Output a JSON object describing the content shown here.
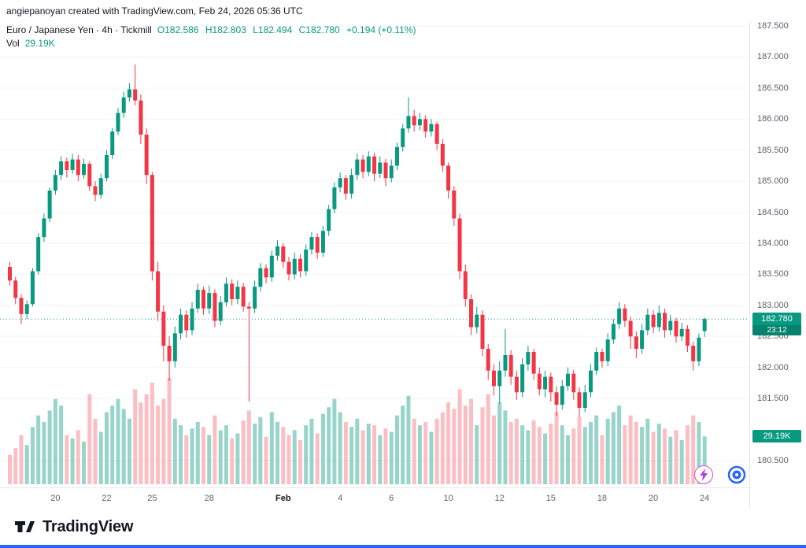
{
  "attribution": "angiepanoyan created with TradingView.com, Feb 24, 2026 05:36 UTC",
  "legend": {
    "symbol_text": "Euro / Japanese Yen · 4h · Tickmill",
    "ohlc_o": "O182.586",
    "ohlc_h": "H182.803",
    "ohlc_l": "L182.494",
    "ohlc_c": "C182.780",
    "change": "+0.194 (+0.11%)",
    "vol_label": "Vol",
    "vol_value": "29.19K"
  },
  "price_badge": {
    "price": "182.780",
    "countdown": "23:12"
  },
  "volume_badge": "29.19K",
  "price_scale": {
    "labels": [
      "187.500",
      "187.000",
      "186.500",
      "186.000",
      "185.500",
      "185.000",
      "184.500",
      "184.000",
      "183.500",
      "183.000",
      "182.500",
      "182.000",
      "181.500",
      "180.500"
    ]
  },
  "footer": {
    "brand": "TradingView"
  },
  "colors": {
    "up": "#089981",
    "down": "#F23645",
    "vol_up": "rgba(8,153,129,0.42)",
    "vol_down": "rgba(242,54,69,0.32)",
    "accent": "#2962FF",
    "grid": "#f0f3fa"
  },
  "chart_data": {
    "type": "candlestick",
    "title": "Euro / Japanese Yen",
    "interval": "4h",
    "provider": "Tickmill",
    "ylim": [
      180.5,
      187.5
    ],
    "current_price": 182.78,
    "current_volume_k": 29.19,
    "last_ohlc": {
      "open": 182.586,
      "high": 182.803,
      "low": 182.494,
      "close": 182.78
    },
    "time_axis": [
      {
        "i": 8,
        "label": "20"
      },
      {
        "i": 17,
        "label": "22"
      },
      {
        "i": 25,
        "label": "25"
      },
      {
        "i": 35,
        "label": "28"
      },
      {
        "i": 48,
        "label": "Feb",
        "major": true
      },
      {
        "i": 58,
        "label": "4"
      },
      {
        "i": 67,
        "label": "6"
      },
      {
        "i": 77,
        "label": "10"
      },
      {
        "i": 86,
        "label": "12"
      },
      {
        "i": 95,
        "label": "15"
      },
      {
        "i": 104,
        "label": "18"
      },
      {
        "i": 113,
        "label": "20"
      },
      {
        "i": 122,
        "label": "24"
      }
    ],
    "candles": [
      [
        183.62,
        183.7,
        183.32,
        183.4,
        18
      ],
      [
        183.4,
        183.46,
        183.02,
        183.12,
        22
      ],
      [
        183.12,
        183.18,
        182.7,
        182.86,
        30
      ],
      [
        182.86,
        183.08,
        182.78,
        183.02,
        24
      ],
      [
        183.02,
        183.6,
        182.98,
        183.55,
        35
      ],
      [
        183.55,
        184.16,
        183.5,
        184.1,
        42
      ],
      [
        184.1,
        184.48,
        184.02,
        184.4,
        38
      ],
      [
        184.4,
        184.9,
        184.34,
        184.85,
        45
      ],
      [
        184.85,
        185.18,
        184.78,
        185.1,
        52
      ],
      [
        185.1,
        185.4,
        185.02,
        185.32,
        48
      ],
      [
        185.32,
        185.38,
        185.06,
        185.18,
        30
      ],
      [
        185.18,
        185.44,
        185.12,
        185.35,
        28
      ],
      [
        185.35,
        185.42,
        185.0,
        185.1,
        33
      ],
      [
        185.1,
        185.36,
        185.04,
        185.28,
        26
      ],
      [
        185.28,
        185.32,
        184.84,
        184.92,
        55
      ],
      [
        184.92,
        185.0,
        184.68,
        184.78,
        40
      ],
      [
        184.78,
        185.12,
        184.72,
        185.05,
        32
      ],
      [
        185.05,
        185.5,
        185.0,
        185.42,
        44
      ],
      [
        185.42,
        185.86,
        185.36,
        185.8,
        48
      ],
      [
        185.8,
        186.18,
        185.74,
        186.1,
        52
      ],
      [
        186.1,
        186.44,
        186.02,
        186.35,
        46
      ],
      [
        186.35,
        186.58,
        186.28,
        186.48,
        40
      ],
      [
        186.48,
        186.88,
        186.22,
        186.3,
        58
      ],
      [
        186.3,
        186.4,
        185.6,
        185.75,
        50
      ],
      [
        185.75,
        185.85,
        184.95,
        185.1,
        55
      ],
      [
        185.1,
        185.15,
        183.4,
        183.55,
        62
      ],
      [
        183.55,
        183.7,
        182.75,
        182.9,
        48
      ],
      [
        182.9,
        183.0,
        182.1,
        182.35,
        52
      ],
      [
        182.35,
        182.5,
        181.78,
        182.1,
        65
      ],
      [
        182.1,
        182.66,
        182.0,
        182.55,
        40
      ],
      [
        182.55,
        182.95,
        182.45,
        182.85,
        36
      ],
      [
        182.85,
        182.92,
        182.48,
        182.6,
        30
      ],
      [
        182.6,
        183.05,
        182.52,
        182.95,
        34
      ],
      [
        182.95,
        183.35,
        182.88,
        183.25,
        38
      ],
      [
        183.25,
        183.3,
        182.85,
        182.95,
        35
      ],
      [
        182.95,
        183.32,
        182.86,
        183.2,
        30
      ],
      [
        183.2,
        183.26,
        182.65,
        182.75,
        42
      ],
      [
        182.75,
        183.15,
        182.68,
        183.05,
        33
      ],
      [
        183.05,
        183.45,
        182.98,
        183.35,
        36
      ],
      [
        183.35,
        183.42,
        183.0,
        183.1,
        28
      ],
      [
        183.1,
        183.4,
        183.02,
        183.3,
        31
      ],
      [
        183.3,
        183.36,
        182.9,
        182.98,
        39
      ],
      [
        182.98,
        183.05,
        181.45,
        182.95,
        45
      ],
      [
        182.95,
        183.4,
        182.88,
        183.3,
        37
      ],
      [
        183.3,
        183.68,
        183.22,
        183.6,
        41
      ],
      [
        183.6,
        183.66,
        183.35,
        183.45,
        29
      ],
      [
        183.45,
        183.88,
        183.38,
        183.8,
        44
      ],
      [
        183.8,
        184.05,
        183.72,
        183.95,
        38
      ],
      [
        183.95,
        184.0,
        183.6,
        183.7,
        35
      ],
      [
        183.7,
        183.78,
        183.4,
        183.5,
        30
      ],
      [
        183.5,
        183.85,
        183.42,
        183.75,
        33
      ],
      [
        183.75,
        183.82,
        183.45,
        183.55,
        27
      ],
      [
        183.55,
        183.98,
        183.48,
        183.9,
        36
      ],
      [
        183.9,
        184.18,
        183.82,
        184.1,
        40
      ],
      [
        184.1,
        184.16,
        183.75,
        183.85,
        31
      ],
      [
        183.85,
        184.28,
        183.78,
        184.2,
        43
      ],
      [
        184.2,
        184.62,
        184.12,
        184.55,
        47
      ],
      [
        184.55,
        184.98,
        184.48,
        184.9,
        52
      ],
      [
        184.9,
        185.14,
        184.82,
        185.05,
        44
      ],
      [
        185.05,
        185.1,
        184.7,
        184.8,
        38
      ],
      [
        184.8,
        185.2,
        184.72,
        185.1,
        35
      ],
      [
        185.1,
        185.45,
        185.02,
        185.35,
        40
      ],
      [
        185.35,
        185.42,
        185.05,
        185.15,
        33
      ],
      [
        185.15,
        185.48,
        185.08,
        185.4,
        37
      ],
      [
        185.4,
        185.46,
        185.0,
        185.12,
        36
      ],
      [
        185.12,
        185.4,
        185.05,
        185.3,
        30
      ],
      [
        185.3,
        185.36,
        184.92,
        185.05,
        34
      ],
      [
        185.05,
        185.35,
        184.98,
        185.25,
        32
      ],
      [
        185.25,
        185.62,
        185.18,
        185.55,
        42
      ],
      [
        185.55,
        185.92,
        185.48,
        185.85,
        48
      ],
      [
        185.85,
        186.35,
        185.78,
        186.05,
        54
      ],
      [
        186.05,
        186.15,
        185.8,
        185.9,
        40
      ],
      [
        185.9,
        186.1,
        185.82,
        186.0,
        36
      ],
      [
        186.0,
        186.06,
        185.7,
        185.8,
        38
      ],
      [
        185.8,
        186.0,
        185.72,
        185.92,
        32
      ],
      [
        185.92,
        185.96,
        185.5,
        185.6,
        40
      ],
      [
        185.6,
        185.68,
        185.15,
        185.25,
        44
      ],
      [
        185.25,
        185.3,
        184.72,
        184.85,
        50
      ],
      [
        184.85,
        184.92,
        184.28,
        184.4,
        46
      ],
      [
        184.4,
        184.48,
        183.42,
        183.55,
        58
      ],
      [
        183.55,
        183.66,
        182.98,
        183.1,
        48
      ],
      [
        183.1,
        183.18,
        182.52,
        182.65,
        52
      ],
      [
        182.65,
        182.98,
        182.55,
        182.85,
        36
      ],
      [
        182.85,
        182.92,
        182.18,
        182.3,
        47
      ],
      [
        182.3,
        182.38,
        181.8,
        181.95,
        55
      ],
      [
        181.95,
        182.05,
        181.55,
        181.7,
        42
      ],
      [
        181.7,
        182.1,
        181.42,
        181.95,
        50
      ],
      [
        181.95,
        182.62,
        181.85,
        182.2,
        45
      ],
      [
        182.2,
        182.28,
        181.72,
        181.85,
        38
      ],
      [
        181.85,
        181.95,
        181.48,
        181.6,
        40
      ],
      [
        181.6,
        182.15,
        181.52,
        182.05,
        36
      ],
      [
        182.05,
        182.35,
        181.95,
        182.25,
        33
      ],
      [
        182.25,
        182.3,
        181.8,
        181.9,
        39
      ],
      [
        181.9,
        182.0,
        181.55,
        181.65,
        35
      ],
      [
        181.65,
        181.95,
        181.52,
        181.85,
        31
      ],
      [
        181.85,
        181.92,
        181.45,
        181.6,
        37
      ],
      [
        181.6,
        181.7,
        181.22,
        181.4,
        44
      ],
      [
        181.4,
        181.8,
        181.32,
        181.7,
        36
      ],
      [
        181.7,
        182.0,
        181.62,
        181.9,
        30
      ],
      [
        181.9,
        181.96,
        181.48,
        181.6,
        34
      ],
      [
        181.6,
        181.68,
        181.2,
        181.35,
        41
      ],
      [
        181.35,
        181.72,
        181.28,
        181.6,
        35
      ],
      [
        181.6,
        182.05,
        181.52,
        181.95,
        38
      ],
      [
        181.95,
        182.32,
        181.88,
        182.25,
        42
      ],
      [
        182.25,
        182.3,
        182.0,
        182.1,
        30
      ],
      [
        182.1,
        182.55,
        182.02,
        182.45,
        40
      ],
      [
        182.45,
        182.78,
        182.38,
        182.7,
        44
      ],
      [
        182.7,
        183.05,
        182.62,
        182.95,
        48
      ],
      [
        182.95,
        183.02,
        182.65,
        182.75,
        36
      ],
      [
        182.75,
        182.82,
        182.3,
        182.5,
        42
      ],
      [
        182.5,
        182.58,
        182.15,
        182.3,
        38
      ],
      [
        182.3,
        182.7,
        182.22,
        182.6,
        35
      ],
      [
        182.6,
        182.95,
        182.52,
        182.85,
        40
      ],
      [
        182.85,
        182.92,
        182.55,
        182.65,
        32
      ],
      [
        182.65,
        183.0,
        182.58,
        182.88,
        37
      ],
      [
        182.88,
        182.95,
        182.48,
        182.6,
        34
      ],
      [
        182.6,
        182.85,
        182.52,
        182.75,
        29
      ],
      [
        182.75,
        182.8,
        182.4,
        182.5,
        33
      ],
      [
        182.5,
        182.72,
        182.42,
        182.62,
        27
      ],
      [
        182.62,
        182.68,
        182.25,
        182.35,
        36
      ],
      [
        182.35,
        182.42,
        181.95,
        182.1,
        42
      ],
      [
        182.1,
        182.55,
        182.02,
        182.48,
        38
      ],
      [
        182.586,
        182.803,
        182.494,
        182.78,
        29.19
      ]
    ]
  }
}
